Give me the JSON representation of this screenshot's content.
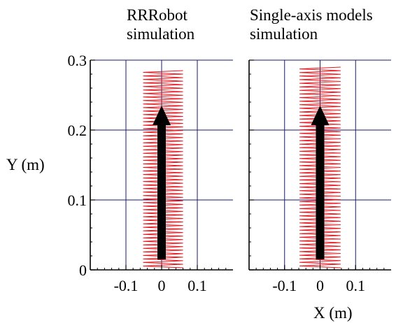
{
  "figure": {
    "ylabel": "Y (m)",
    "xlabel": "X (m)"
  },
  "colors": {
    "trajectory": "#e8141b",
    "grid": "#1a1a6e",
    "arrow": "#000000",
    "axes": "#000000"
  },
  "chart_data": [
    {
      "type": "line",
      "title_line1": "RRRobot",
      "title_line2": "simulation",
      "xlim": [
        -0.2,
        0.2
      ],
      "ylim": [
        0,
        0.3
      ],
      "xticks": [
        -0.1,
        0,
        0.1
      ],
      "xtick_labels": [
        "-0.1",
        "0",
        "0.1"
      ],
      "yticks": [
        0,
        0.1,
        0.2,
        0.3
      ],
      "ytick_labels": [
        "0",
        "0.1",
        "0.2",
        "0.3"
      ],
      "grid": true,
      "trajectory": {
        "x_min": -0.052,
        "x_max": 0.06,
        "y_start": 0.003,
        "y_end": 0.285,
        "oscillations": 56,
        "note": "zigzag sweep between x_min and x_max"
      },
      "arrow": {
        "x": 0,
        "y_from": 0.015,
        "y_to": 0.235
      }
    },
    {
      "type": "line",
      "title_line1": "Single-axis models",
      "title_line2": "simulation",
      "xlim": [
        -0.2,
        0.2
      ],
      "ylim": [
        0,
        0.3
      ],
      "xticks": [
        -0.1,
        0,
        0.1
      ],
      "xtick_labels": [
        "-0.1",
        "0",
        "0.1"
      ],
      "yticks": [
        0,
        0.1,
        0.2,
        0.3
      ],
      "ytick_labels": [],
      "grid": true,
      "trajectory": {
        "x_min": -0.058,
        "x_max": 0.058,
        "y_start": 0.003,
        "y_end": 0.29,
        "oscillations": 56,
        "note": "zigzag sweep between x_min and x_max"
      },
      "arrow": {
        "x": 0,
        "y_from": 0.015,
        "y_to": 0.235
      }
    }
  ]
}
